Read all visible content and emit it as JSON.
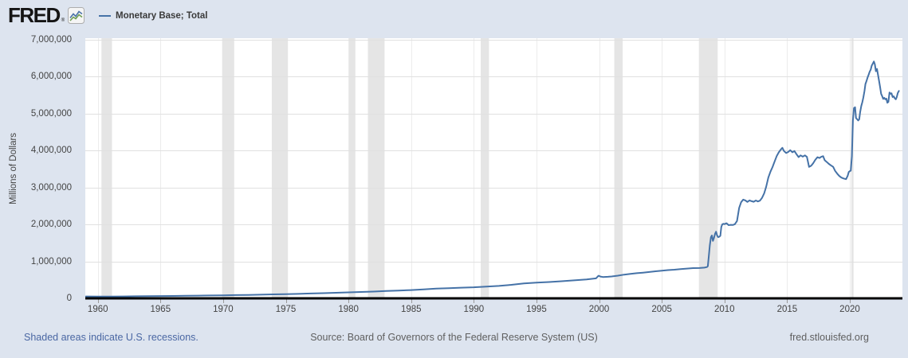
{
  "header": {
    "logo_text": "FRED",
    "logo_reg": "®",
    "legend": {
      "label": "Monetary Base; Total"
    }
  },
  "footer": {
    "recession_note": "Shaded areas indicate U.S. recessions.",
    "source": "Source: Board of Governors of the Federal Reserve System (US)",
    "site": "fred.stlouisfed.org"
  },
  "colors": {
    "page_bg": "#dde4ef",
    "plot_bg": "#ffffff",
    "line": "#4572a7",
    "recession": "#e5e5e5",
    "grid_h": "#e0e0e0",
    "grid_v": "#ececec",
    "axis_line": "#000000",
    "tick_mark": "#999999",
    "tick_text": "#444444",
    "footer_text": "#5f5f5f",
    "link_text": "#4a67a3"
  },
  "chart_data": {
    "type": "line",
    "title": "Monetary Base; Total",
    "xlabel": "",
    "ylabel": "Millions of Dollars",
    "grid": true,
    "legend_position": "top-left",
    "xlim": [
      1959,
      2024.2
    ],
    "ylim": [
      0,
      7000000
    ],
    "x_ticks": [
      1960,
      1965,
      1970,
      1975,
      1980,
      1985,
      1990,
      1995,
      2000,
      2005,
      2010,
      2015,
      2020
    ],
    "y_ticks": [
      {
        "v": 0,
        "label": "0"
      },
      {
        "v": 1000000,
        "label": "1,000,000"
      },
      {
        "v": 2000000,
        "label": "2,000,000"
      },
      {
        "v": 3000000,
        "label": "3,000,000"
      },
      {
        "v": 4000000,
        "label": "4,000,000"
      },
      {
        "v": 5000000,
        "label": "5,000,000"
      },
      {
        "v": 6000000,
        "label": "6,000,000"
      },
      {
        "v": 7000000,
        "label": "7,000,000"
      }
    ],
    "recessions": [
      [
        1960.29,
        1961.13
      ],
      [
        1969.92,
        1970.88
      ],
      [
        1973.88,
        1975.17
      ],
      [
        1980.04,
        1980.55
      ],
      [
        1981.55,
        1982.88
      ],
      [
        1990.55,
        1991.21
      ],
      [
        2001.21,
        2001.88
      ],
      [
        2007.96,
        2009.46
      ],
      [
        2020.12,
        2020.3
      ]
    ],
    "series": [
      {
        "name": "Monetary Base; Total",
        "points": [
          [
            1959.05,
            50800
          ],
          [
            1960,
            50500
          ],
          [
            1961,
            50600
          ],
          [
            1962,
            52400
          ],
          [
            1963,
            55000
          ],
          [
            1964,
            58300
          ],
          [
            1965,
            61800
          ],
          [
            1966,
            65400
          ],
          [
            1967,
            69000
          ],
          [
            1968,
            73400
          ],
          [
            1969,
            77700
          ],
          [
            1970,
            81200
          ],
          [
            1971,
            87500
          ],
          [
            1972,
            93100
          ],
          [
            1973,
            99300
          ],
          [
            1974,
            106800
          ],
          [
            1975,
            114000
          ],
          [
            1976,
            121500
          ],
          [
            1977,
            130400
          ],
          [
            1978,
            140200
          ],
          [
            1979,
            151600
          ],
          [
            1980,
            162100
          ],
          [
            1981,
            172400
          ],
          [
            1982,
            183600
          ],
          [
            1983,
            197500
          ],
          [
            1984,
            210900
          ],
          [
            1985,
            223500
          ],
          [
            1986,
            241800
          ],
          [
            1987,
            263000
          ],
          [
            1988,
            275700
          ],
          [
            1989,
            287800
          ],
          [
            1990,
            300000
          ],
          [
            1991,
            317800
          ],
          [
            1992,
            336600
          ],
          [
            1993,
            365900
          ],
          [
            1994,
            404600
          ],
          [
            1995,
            426700
          ],
          [
            1996,
            442600
          ],
          [
            1997,
            463700
          ],
          [
            1998,
            486400
          ],
          [
            1999,
            512800
          ],
          [
            1999.75,
            540000
          ],
          [
            1999.95,
            612000
          ],
          [
            2000.1,
            590000
          ],
          [
            2000.3,
            578000
          ],
          [
            2000.7,
            584000
          ],
          [
            2001,
            592000
          ],
          [
            2001.5,
            614000
          ],
          [
            2002,
            642000
          ],
          [
            2002.5,
            662000
          ],
          [
            2003,
            680000
          ],
          [
            2003.5,
            695000
          ],
          [
            2004,
            713000
          ],
          [
            2004.5,
            733000
          ],
          [
            2005,
            747000
          ],
          [
            2005.5,
            765000
          ],
          [
            2006,
            775000
          ],
          [
            2006.5,
            790000
          ],
          [
            2007,
            806000
          ],
          [
            2007.5,
            818000
          ],
          [
            2008,
            821000
          ],
          [
            2008.4,
            831000
          ],
          [
            2008.6,
            847000
          ],
          [
            2008.67,
            871000
          ],
          [
            2008.75,
            1130000
          ],
          [
            2008.83,
            1435000
          ],
          [
            2008.92,
            1655000
          ],
          [
            2009.0,
            1702000
          ],
          [
            2009.08,
            1556000
          ],
          [
            2009.17,
            1642000
          ],
          [
            2009.25,
            1749000
          ],
          [
            2009.33,
            1802000
          ],
          [
            2009.42,
            1702000
          ],
          [
            2009.5,
            1657000
          ],
          [
            2009.58,
            1667000
          ],
          [
            2009.67,
            1693000
          ],
          [
            2009.75,
            1932000
          ],
          [
            2009.83,
            2005000
          ],
          [
            2009.92,
            2019000
          ],
          [
            2010.0,
            2010000
          ],
          [
            2010.17,
            2033000
          ],
          [
            2010.33,
            1982000
          ],
          [
            2010.5,
            1990000
          ],
          [
            2010.67,
            1985000
          ],
          [
            2010.83,
            2008000
          ],
          [
            2011.0,
            2093000
          ],
          [
            2011.17,
            2448000
          ],
          [
            2011.33,
            2605000
          ],
          [
            2011.5,
            2672000
          ],
          [
            2011.67,
            2651000
          ],
          [
            2011.83,
            2611000
          ],
          [
            2012.0,
            2652000
          ],
          [
            2012.17,
            2630000
          ],
          [
            2012.33,
            2615000
          ],
          [
            2012.5,
            2650000
          ],
          [
            2012.67,
            2623000
          ],
          [
            2012.83,
            2645000
          ],
          [
            2013.0,
            2720000
          ],
          [
            2013.17,
            2843000
          ],
          [
            2013.33,
            3021000
          ],
          [
            2013.5,
            3270000
          ],
          [
            2013.67,
            3431000
          ],
          [
            2013.83,
            3551000
          ],
          [
            2014.0,
            3701000
          ],
          [
            2014.17,
            3852000
          ],
          [
            2014.33,
            3951000
          ],
          [
            2014.5,
            4030000
          ],
          [
            2014.62,
            4075000
          ],
          [
            2014.75,
            3990000
          ],
          [
            2014.92,
            3935000
          ],
          [
            2015.08,
            3960000
          ],
          [
            2015.25,
            4010000
          ],
          [
            2015.42,
            3955000
          ],
          [
            2015.58,
            3990000
          ],
          [
            2015.75,
            3900000
          ],
          [
            2015.92,
            3822000
          ],
          [
            2016.08,
            3870000
          ],
          [
            2016.25,
            3835000
          ],
          [
            2016.42,
            3870000
          ],
          [
            2016.58,
            3830000
          ],
          [
            2016.75,
            3558000
          ],
          [
            2016.92,
            3590000
          ],
          [
            2017.08,
            3660000
          ],
          [
            2017.25,
            3750000
          ],
          [
            2017.42,
            3820000
          ],
          [
            2017.58,
            3800000
          ],
          [
            2017.75,
            3835000
          ],
          [
            2017.87,
            3849000
          ],
          [
            2018.0,
            3740000
          ],
          [
            2018.17,
            3690000
          ],
          [
            2018.33,
            3640000
          ],
          [
            2018.5,
            3600000
          ],
          [
            2018.67,
            3560000
          ],
          [
            2018.83,
            3450000
          ],
          [
            2019.0,
            3373000
          ],
          [
            2019.17,
            3310000
          ],
          [
            2019.33,
            3270000
          ],
          [
            2019.5,
            3245000
          ],
          [
            2019.7,
            3226000
          ],
          [
            2019.83,
            3315000
          ],
          [
            2019.92,
            3420000
          ],
          [
            2020.0,
            3443000
          ],
          [
            2020.08,
            3454000
          ],
          [
            2020.17,
            3842000
          ],
          [
            2020.25,
            4818000
          ],
          [
            2020.33,
            5149000
          ],
          [
            2020.42,
            5174000
          ],
          [
            2020.5,
            4880000
          ],
          [
            2020.58,
            4852000
          ],
          [
            2020.67,
            4817000
          ],
          [
            2020.75,
            4847000
          ],
          [
            2020.83,
            5044000
          ],
          [
            2020.92,
            5207000
          ],
          [
            2021.0,
            5310000
          ],
          [
            2021.08,
            5440000
          ],
          [
            2021.17,
            5610000
          ],
          [
            2021.25,
            5802000
          ],
          [
            2021.33,
            5880000
          ],
          [
            2021.42,
            5980000
          ],
          [
            2021.5,
            6052000
          ],
          [
            2021.58,
            6130000
          ],
          [
            2021.67,
            6190000
          ],
          [
            2021.75,
            6299000
          ],
          [
            2021.83,
            6350000
          ],
          [
            2021.92,
            6413000
          ],
          [
            2022.0,
            6336000
          ],
          [
            2022.08,
            6150000
          ],
          [
            2022.17,
            6210000
          ],
          [
            2022.25,
            6061000
          ],
          [
            2022.33,
            5900000
          ],
          [
            2022.42,
            5720000
          ],
          [
            2022.5,
            5535000
          ],
          [
            2022.58,
            5480000
          ],
          [
            2022.67,
            5400000
          ],
          [
            2022.75,
            5430000
          ],
          [
            2022.83,
            5390000
          ],
          [
            2022.92,
            5407000
          ],
          [
            2023.0,
            5295000
          ],
          [
            2023.08,
            5320000
          ],
          [
            2023.17,
            5573000
          ],
          [
            2023.25,
            5540000
          ],
          [
            2023.33,
            5550000
          ],
          [
            2023.42,
            5450000
          ],
          [
            2023.5,
            5470000
          ],
          [
            2023.58,
            5420000
          ],
          [
            2023.67,
            5390000
          ],
          [
            2023.75,
            5450000
          ],
          [
            2023.83,
            5560000
          ],
          [
            2023.92,
            5614000
          ]
        ]
      }
    ]
  }
}
